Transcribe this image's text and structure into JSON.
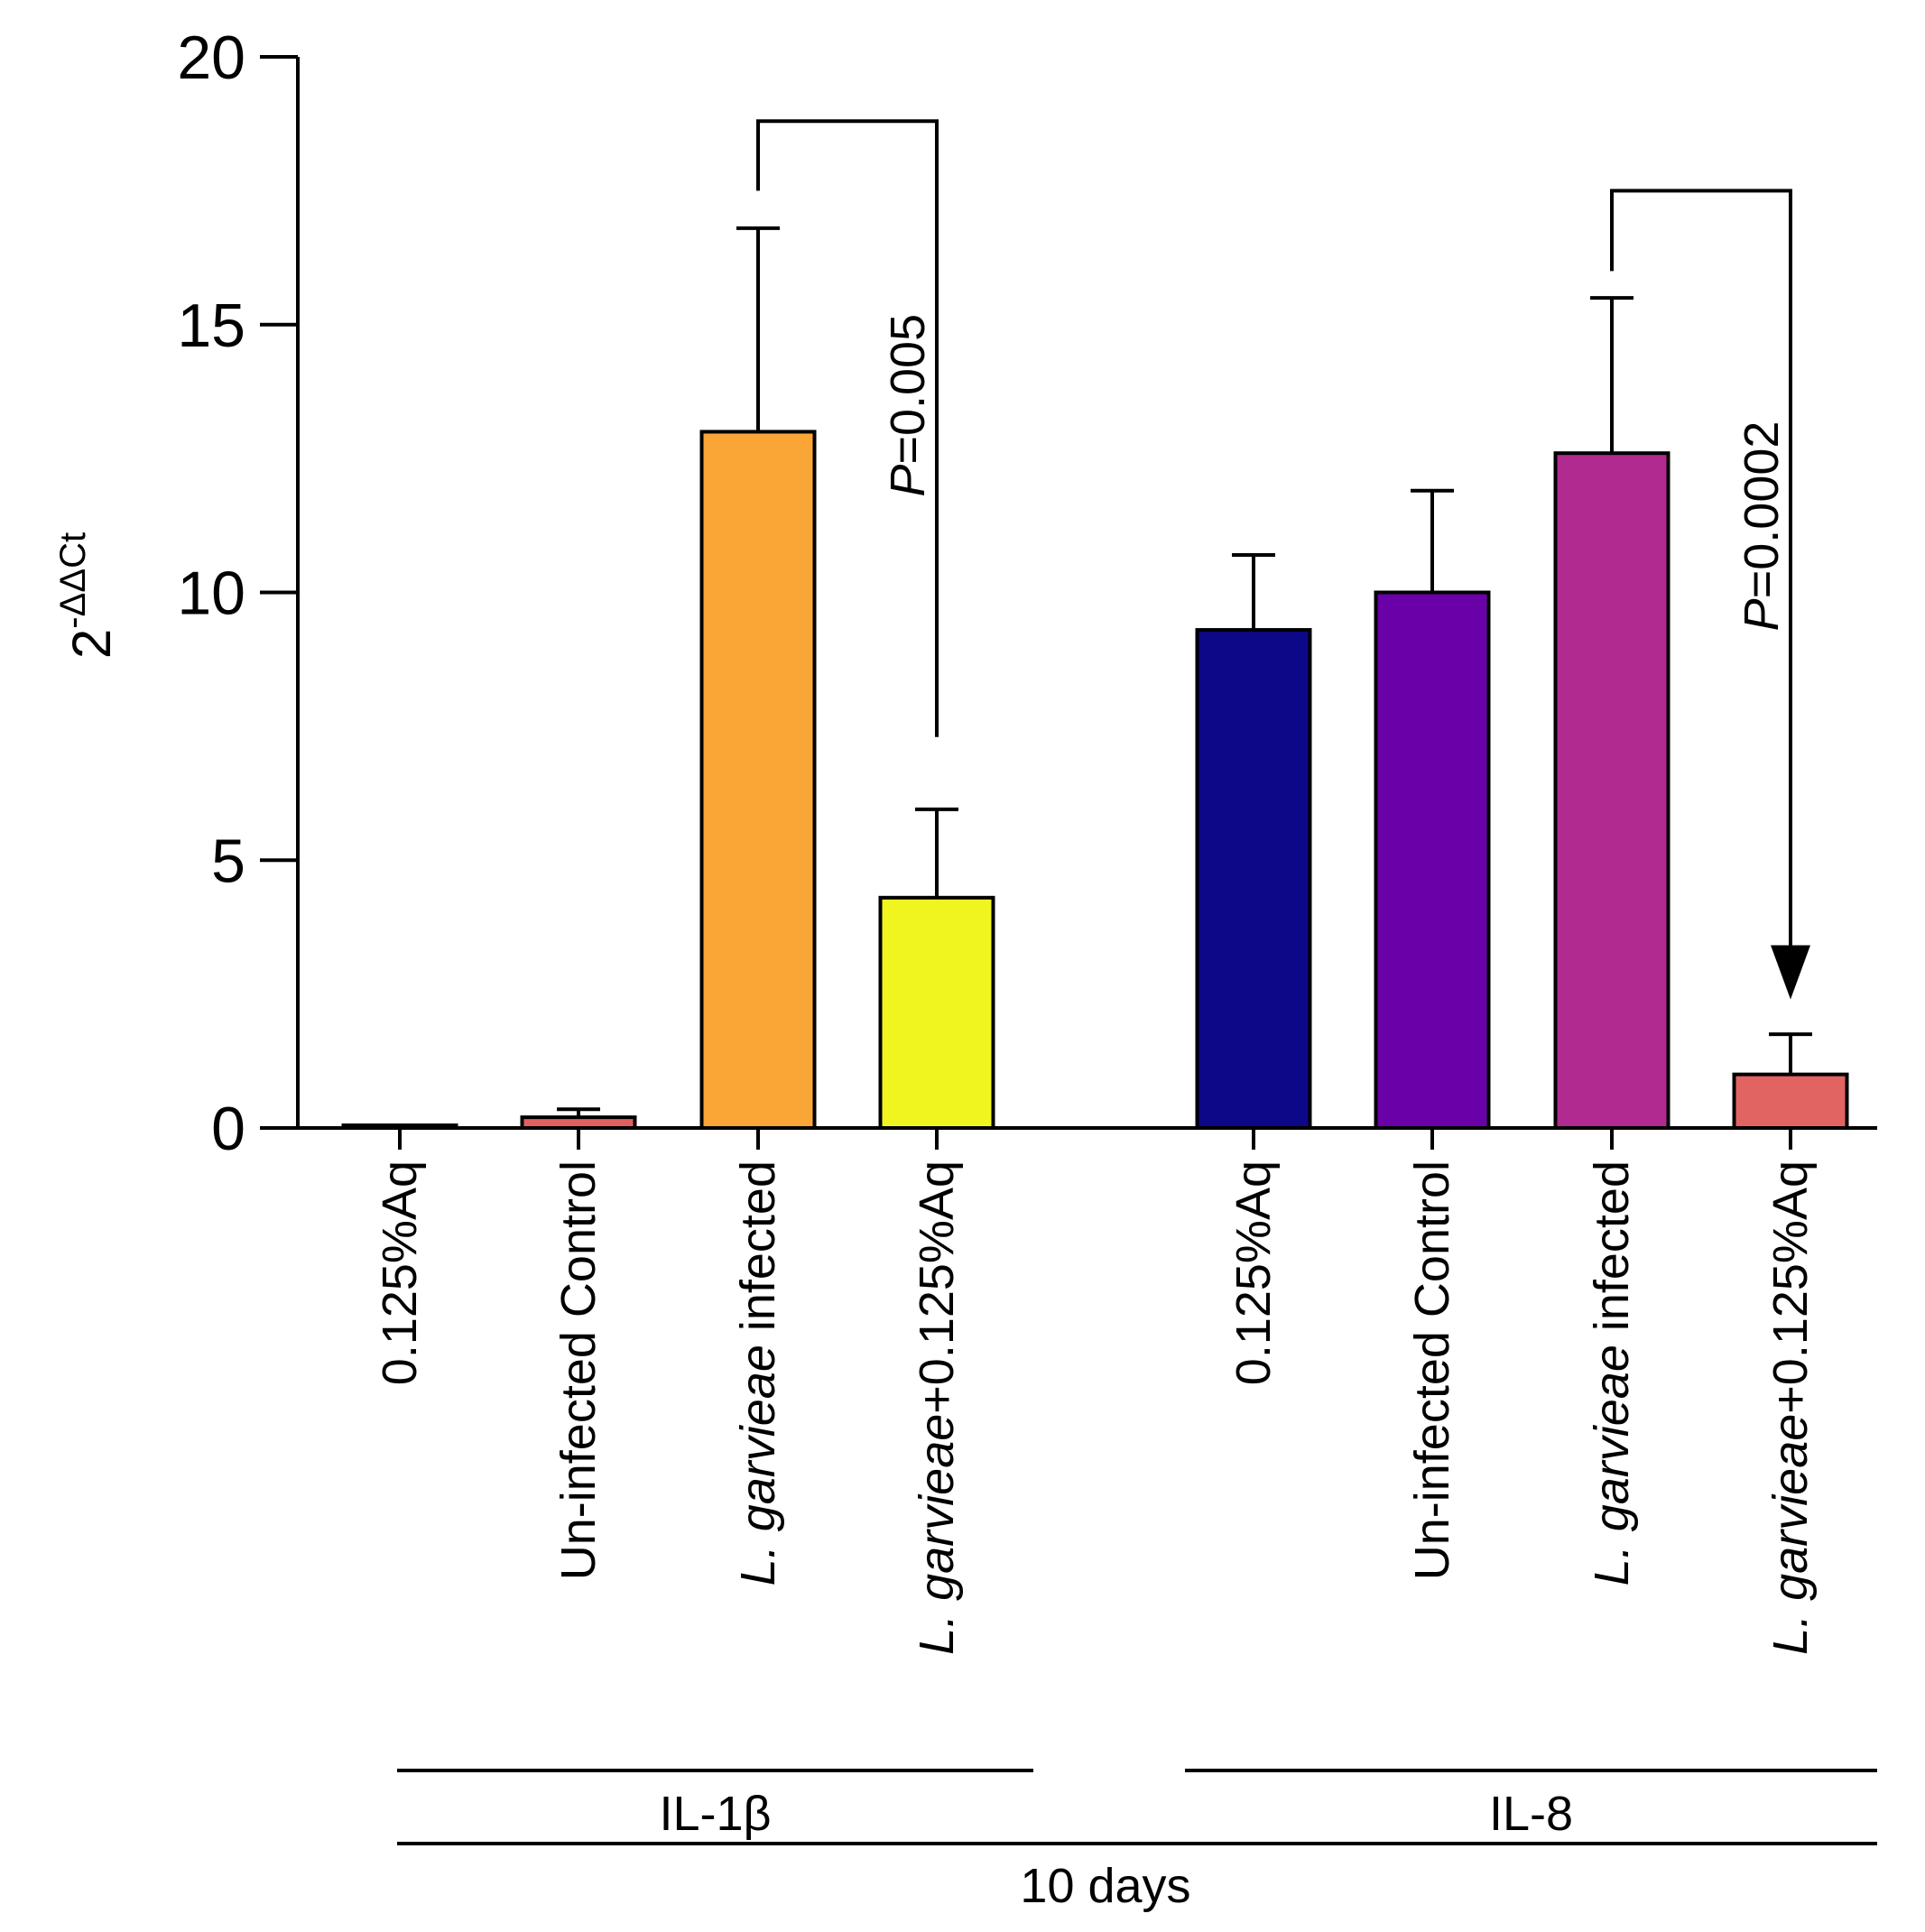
{
  "chart_data": {
    "type": "bar",
    "ylabel": "2",
    "ylabel_exponent": "-ΔΔCt",
    "ylim": [
      0,
      20
    ],
    "yticks": [
      "0",
      "5",
      "10",
      "15",
      "20"
    ],
    "bars": [
      {
        "group": "IL-1β",
        "label_italic": "",
        "label_text": "0.125%Aq",
        "value": 0.05,
        "error": 0.0,
        "color": "#ffffff"
      },
      {
        "group": "IL-1β",
        "label_italic": "",
        "label_text": "Un-infected Control",
        "value": 0.2,
        "error": 0.15,
        "color": "#E06060"
      },
      {
        "group": "IL-1β",
        "label_italic": "L. garvieae",
        "label_text": " infected",
        "value": 13.0,
        "error": 3.8,
        "color": "#F9A637"
      },
      {
        "group": "IL-1β",
        "label_italic": "L. garvieae",
        "label_text": "+0.125%Aq",
        "value": 4.3,
        "error": 1.65,
        "color": "#F0F520"
      },
      {
        "group": "IL-8",
        "label_italic": "",
        "label_text": "0.125%Aq",
        "value": 9.3,
        "error": 1.4,
        "color": "#0D0887"
      },
      {
        "group": "IL-8",
        "label_italic": "",
        "label_text": "Un-infected Control",
        "value": 10.0,
        "error": 1.9,
        "color": "#6A00A8"
      },
      {
        "group": "IL-8",
        "label_italic": "L. garvieae",
        "label_text": " infected",
        "value": 12.6,
        "error": 2.9,
        "color": "#B12A90"
      },
      {
        "group": "IL-8",
        "label_italic": "L. garvieae",
        "label_text": "+0.125%Aq",
        "value": 1.0,
        "error": 0.75,
        "color": "#E16462"
      }
    ],
    "groups": [
      "IL-1β",
      "IL-8"
    ],
    "time_label": "10 days",
    "comparisons": [
      {
        "from": 2,
        "to": 3,
        "p_italic": "P",
        "p_text": "=0.005",
        "bracket_y": 18.8,
        "from_y": 17.5,
        "to_y": 7.3,
        "arrow": false
      },
      {
        "from": 6,
        "to": 7,
        "p_italic": "P",
        "p_text": "=0.0002",
        "bracket_y": 17.5,
        "from_y": 16.0,
        "to_y": 2.4,
        "arrow": true
      }
    ]
  }
}
